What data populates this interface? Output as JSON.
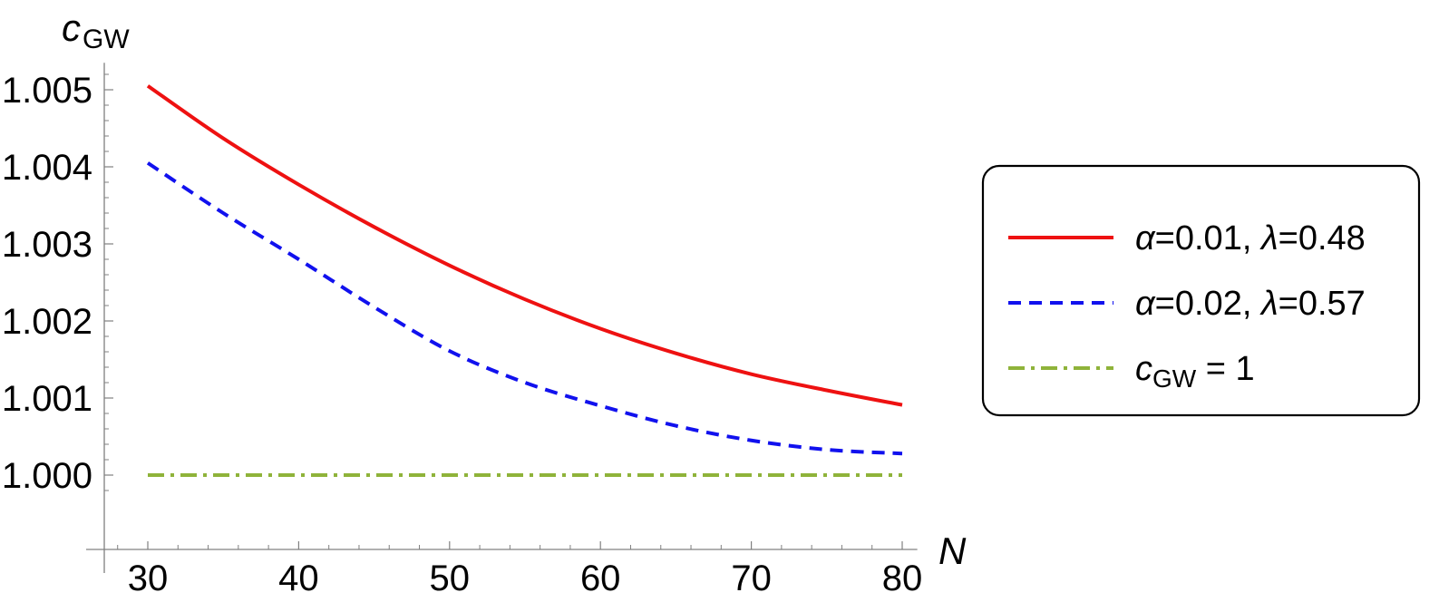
{
  "chart_data": {
    "type": "line",
    "xlabel": "N",
    "ylabel": {
      "main": "c",
      "sub": "GW"
    },
    "xlim": [
      27.5,
      81
    ],
    "ylim": [
      0.99975,
      1.00535
    ],
    "xticks": [
      {
        "value": 30,
        "label": "30"
      },
      {
        "value": 40,
        "label": "40"
      },
      {
        "value": 50,
        "label": "50"
      },
      {
        "value": 60,
        "label": "60"
      },
      {
        "value": 70,
        "label": "70"
      },
      {
        "value": 80,
        "label": "80"
      }
    ],
    "yticks": [
      {
        "value": 1.0,
        "label": "1.000"
      },
      {
        "value": 1.001,
        "label": "1.001"
      },
      {
        "value": 1.002,
        "label": "1.002"
      },
      {
        "value": 1.003,
        "label": "1.003"
      },
      {
        "value": 1.004,
        "label": "1.004"
      },
      {
        "value": 1.005,
        "label": "1.005"
      }
    ],
    "grid": false,
    "legend_position": "right",
    "series": [
      {
        "legend": {
          "alpha": "0.01",
          "lambda": "0.48"
        },
        "color": "#ee1111",
        "style": "solid",
        "x": [
          30,
          35,
          40,
          45,
          50,
          55,
          60,
          65,
          70,
          75,
          80
        ],
        "y": [
          1.00505,
          1.00437,
          1.00377,
          1.00322,
          1.00272,
          1.00228,
          1.0019,
          1.00158,
          1.00131,
          1.0011,
          1.00091
        ]
      },
      {
        "legend": {
          "alpha": "0.02",
          "lambda": "0.57"
        },
        "color": "#1111ee",
        "style": "dashed",
        "x": [
          30,
          35,
          40,
          45,
          50,
          55,
          60,
          65,
          70,
          75,
          80
        ],
        "y": [
          1.00405,
          1.0034,
          1.0028,
          1.00218,
          1.00161,
          1.0012,
          1.0009,
          1.00064,
          1.00045,
          1.00033,
          1.00028
        ]
      },
      {
        "legend": {
          "main": "c",
          "sub": "GW",
          "rest": " = 1"
        },
        "color": "#8fb33a",
        "style": "dashdot",
        "x": [
          30,
          80
        ],
        "y": [
          1.0,
          1.0
        ]
      }
    ]
  },
  "legend_symbols": {
    "alpha": "α",
    "lambda": "λ"
  }
}
